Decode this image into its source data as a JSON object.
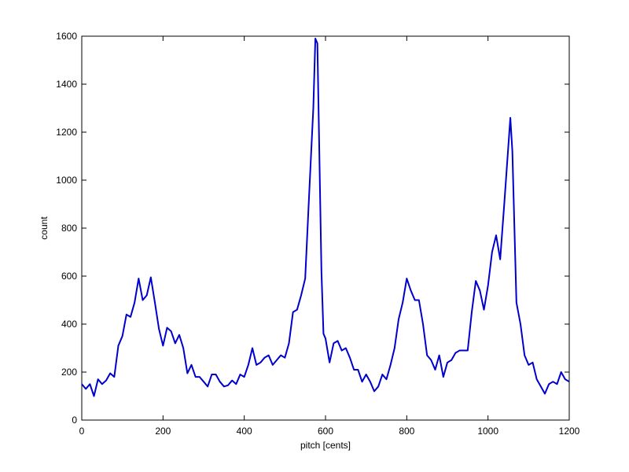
{
  "chart_data": {
    "type": "line",
    "x_label": "pitch [cents]",
    "y_label": "count",
    "x": [
      0,
      10,
      20,
      30,
      40,
      50,
      60,
      70,
      80,
      90,
      100,
      110,
      120,
      130,
      140,
      150,
      160,
      170,
      180,
      190,
      200,
      210,
      220,
      230,
      240,
      250,
      260,
      270,
      280,
      290,
      300,
      310,
      320,
      330,
      340,
      350,
      360,
      370,
      380,
      390,
      400,
      410,
      420,
      430,
      440,
      450,
      460,
      470,
      480,
      490,
      500,
      510,
      520,
      530,
      540,
      550,
      560,
      570,
      575,
      580,
      590,
      595,
      600,
      610,
      620,
      630,
      640,
      650,
      660,
      670,
      680,
      690,
      700,
      710,
      720,
      730,
      740,
      750,
      760,
      770,
      780,
      790,
      800,
      810,
      820,
      830,
      840,
      850,
      860,
      870,
      880,
      890,
      900,
      910,
      920,
      930,
      940,
      950,
      960,
      970,
      980,
      990,
      1000,
      1010,
      1020,
      1030,
      1040,
      1050,
      1055,
      1060,
      1070,
      1080,
      1090,
      1100,
      1110,
      1120,
      1130,
      1140,
      1150,
      1160,
      1170,
      1180,
      1190,
      1200
    ],
    "series": [
      {
        "color": "#0000cc",
        "values": [
          150,
          130,
          150,
          100,
          170,
          150,
          165,
          195,
          180,
          310,
          350,
          440,
          430,
          490,
          590,
          500,
          520,
          595,
          490,
          380,
          310,
          385,
          370,
          320,
          355,
          300,
          195,
          230,
          180,
          180,
          160,
          140,
          190,
          190,
          160,
          140,
          145,
          165,
          150,
          190,
          180,
          230,
          300,
          230,
          240,
          260,
          270,
          230,
          250,
          270,
          260,
          320,
          450,
          460,
          520,
          590,
          950,
          1300,
          1590,
          1570,
          620,
          360,
          340,
          240,
          320,
          330,
          290,
          300,
          260,
          210,
          210,
          160,
          190,
          160,
          120,
          140,
          190,
          170,
          230,
          300,
          420,
          490,
          590,
          540,
          500,
          500,
          400,
          270,
          250,
          210,
          270,
          180,
          240,
          250,
          280,
          290,
          290,
          290,
          450,
          580,
          540,
          460,
          560,
          700,
          770,
          670,
          900,
          1140,
          1260,
          1120,
          490,
          400,
          270,
          230,
          240,
          170,
          140,
          110,
          150,
          160,
          150,
          200,
          170,
          160
        ]
      }
    ],
    "xlim": [
      0,
      1200
    ],
    "ylim": [
      0,
      1600
    ],
    "xticks": [
      0,
      200,
      400,
      600,
      800,
      1000,
      1200
    ],
    "yticks": [
      0,
      200,
      400,
      600,
      800,
      1000,
      1200,
      1400,
      1600
    ]
  }
}
